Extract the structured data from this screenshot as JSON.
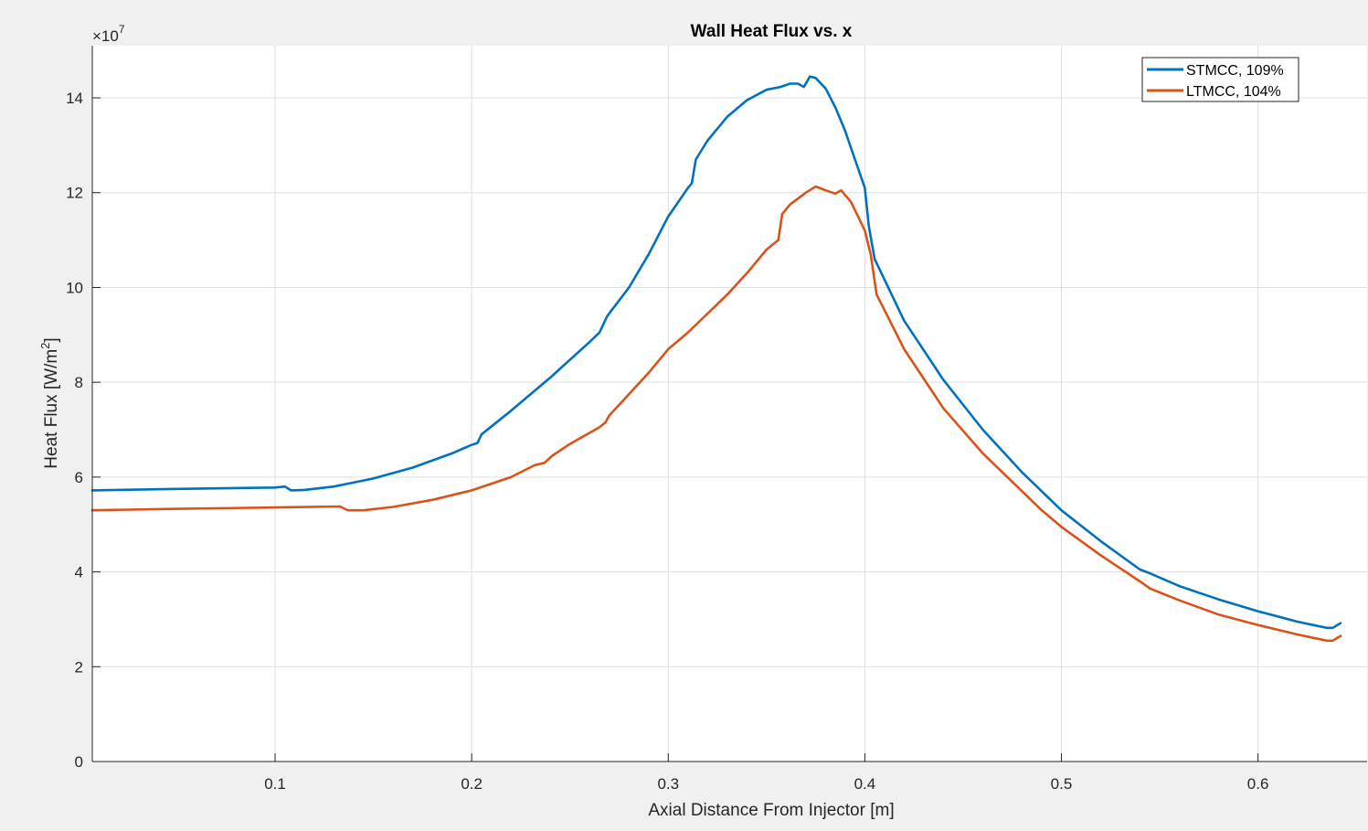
{
  "chart_data": {
    "type": "line",
    "title": "Wall Heat Flux vs. x",
    "xlabel": "Axial Distance From Injector [m]",
    "ylabel_main": "Heat Flux [W/m",
    "ylabel_sup": "2",
    "ylabel_close": "]",
    "exponent_base": "×10",
    "exponent_power": "7",
    "xlim": [
      0.007,
      0.6555
    ],
    "ylim": [
      0,
      15.1
    ],
    "xticks": [
      0.1,
      0.2,
      0.3,
      0.4,
      0.5,
      0.6
    ],
    "xtick_labels": [
      "0.1",
      "0.2",
      "0.3",
      "0.4",
      "0.5",
      "0.6"
    ],
    "yticks": [
      0,
      2,
      4,
      6,
      8,
      10,
      12,
      14
    ],
    "ytick_labels": [
      "0",
      "2",
      "4",
      "6",
      "8",
      "10",
      "12",
      "14"
    ],
    "grid": true,
    "legend_position": "top-right",
    "y_multiplier": "1e7",
    "series": [
      {
        "name": "STMCC, 109%",
        "color": "#0072BD",
        "points": [
          [
            0.007,
            5.72
          ],
          [
            0.05,
            5.75
          ],
          [
            0.1,
            5.78
          ],
          [
            0.105,
            5.8
          ],
          [
            0.108,
            5.72
          ],
          [
            0.115,
            5.73
          ],
          [
            0.13,
            5.8
          ],
          [
            0.15,
            5.97
          ],
          [
            0.17,
            6.2
          ],
          [
            0.19,
            6.5
          ],
          [
            0.2,
            6.68
          ],
          [
            0.203,
            6.72
          ],
          [
            0.205,
            6.9
          ],
          [
            0.22,
            7.4
          ],
          [
            0.24,
            8.1
          ],
          [
            0.26,
            8.85
          ],
          [
            0.265,
            9.05
          ],
          [
            0.269,
            9.4
          ],
          [
            0.28,
            10.0
          ],
          [
            0.29,
            10.7
          ],
          [
            0.3,
            11.5
          ],
          [
            0.31,
            12.1
          ],
          [
            0.312,
            12.2
          ],
          [
            0.314,
            12.7
          ],
          [
            0.32,
            13.1
          ],
          [
            0.33,
            13.6
          ],
          [
            0.34,
            13.95
          ],
          [
            0.35,
            14.17
          ],
          [
            0.357,
            14.23
          ],
          [
            0.362,
            14.3
          ],
          [
            0.366,
            14.3
          ],
          [
            0.369,
            14.23
          ],
          [
            0.372,
            14.45
          ],
          [
            0.375,
            14.42
          ],
          [
            0.38,
            14.2
          ],
          [
            0.385,
            13.8
          ],
          [
            0.39,
            13.3
          ],
          [
            0.395,
            12.7
          ],
          [
            0.4,
            12.1
          ],
          [
            0.402,
            11.3
          ],
          [
            0.405,
            10.6
          ],
          [
            0.42,
            9.3
          ],
          [
            0.44,
            8.05
          ],
          [
            0.46,
            7.0
          ],
          [
            0.47,
            6.55
          ],
          [
            0.48,
            6.1
          ],
          [
            0.5,
            5.3
          ],
          [
            0.52,
            4.65
          ],
          [
            0.54,
            4.05
          ],
          [
            0.545,
            3.97
          ],
          [
            0.56,
            3.7
          ],
          [
            0.58,
            3.42
          ],
          [
            0.6,
            3.17
          ],
          [
            0.62,
            2.95
          ],
          [
            0.635,
            2.82
          ],
          [
            0.638,
            2.82
          ],
          [
            0.642,
            2.92
          ]
        ]
      },
      {
        "name": "LTMCC, 104%",
        "color": "#D95319",
        "points": [
          [
            0.007,
            5.3
          ],
          [
            0.05,
            5.33
          ],
          [
            0.1,
            5.36
          ],
          [
            0.133,
            5.38
          ],
          [
            0.137,
            5.3
          ],
          [
            0.145,
            5.3
          ],
          [
            0.16,
            5.37
          ],
          [
            0.18,
            5.52
          ],
          [
            0.2,
            5.72
          ],
          [
            0.22,
            6.0
          ],
          [
            0.232,
            6.25
          ],
          [
            0.237,
            6.3
          ],
          [
            0.241,
            6.45
          ],
          [
            0.25,
            6.7
          ],
          [
            0.265,
            7.05
          ],
          [
            0.268,
            7.15
          ],
          [
            0.27,
            7.3
          ],
          [
            0.28,
            7.75
          ],
          [
            0.29,
            8.2
          ],
          [
            0.3,
            8.7
          ],
          [
            0.31,
            9.05
          ],
          [
            0.32,
            9.45
          ],
          [
            0.33,
            9.85
          ],
          [
            0.34,
            10.3
          ],
          [
            0.35,
            10.8
          ],
          [
            0.356,
            11.0
          ],
          [
            0.358,
            11.55
          ],
          [
            0.362,
            11.75
          ],
          [
            0.37,
            12.0
          ],
          [
            0.375,
            12.13
          ],
          [
            0.38,
            12.05
          ],
          [
            0.385,
            11.98
          ],
          [
            0.388,
            12.05
          ],
          [
            0.393,
            11.8
          ],
          [
            0.4,
            11.2
          ],
          [
            0.403,
            10.7
          ],
          [
            0.406,
            9.85
          ],
          [
            0.42,
            8.7
          ],
          [
            0.44,
            7.45
          ],
          [
            0.46,
            6.5
          ],
          [
            0.47,
            6.1
          ],
          [
            0.49,
            5.3
          ],
          [
            0.5,
            4.95
          ],
          [
            0.52,
            4.35
          ],
          [
            0.54,
            3.8
          ],
          [
            0.545,
            3.65
          ],
          [
            0.56,
            3.4
          ],
          [
            0.58,
            3.1
          ],
          [
            0.6,
            2.88
          ],
          [
            0.62,
            2.68
          ],
          [
            0.635,
            2.55
          ],
          [
            0.638,
            2.55
          ],
          [
            0.642,
            2.65
          ]
        ]
      }
    ]
  }
}
